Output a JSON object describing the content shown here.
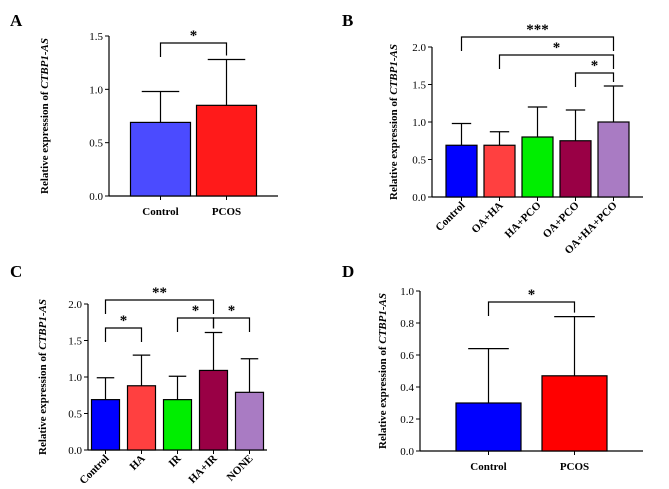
{
  "chart_data": [
    {
      "panel": "A",
      "type": "bar",
      "ylabel_prefix": "Relative expression of ",
      "ylabel_gene": "CTBP1-AS",
      "categories": [
        "Control",
        "PCOS"
      ],
      "values": [
        0.69,
        0.85
      ],
      "errors": [
        0.29,
        0.43
      ],
      "colors": [
        "#4B4BFF",
        "#FF1A1A"
      ],
      "ylim": [
        0,
        1.5
      ],
      "yticks": [
        "0.0",
        "0.5",
        "1.0",
        "1.5"
      ],
      "significance": [
        {
          "from": 0,
          "to": 1,
          "label": "*"
        }
      ]
    },
    {
      "panel": "B",
      "type": "bar",
      "ylabel_prefix": "Relative expression of ",
      "ylabel_gene": "CTBP1-AS",
      "categories": [
        "Control",
        "OA+HA",
        "HA+PCO",
        "OA+PCO",
        "OA+HA+PCO"
      ],
      "values": [
        0.69,
        0.69,
        0.8,
        0.75,
        1.0
      ],
      "errors": [
        0.29,
        0.18,
        0.4,
        0.41,
        0.48
      ],
      "colors": [
        "#0000FF",
        "#FF4040",
        "#00EE00",
        "#990045",
        "#A97BC3"
      ],
      "ylim": [
        0,
        2.0
      ],
      "yticks": [
        "0.0",
        "0.5",
        "1.0",
        "1.5",
        "2.0"
      ],
      "significance": [
        {
          "from": 0,
          "to": 4,
          "label": "***"
        },
        {
          "from": 1,
          "to": 4,
          "label": "*"
        },
        {
          "from": 3,
          "to": 4,
          "label": "*"
        }
      ]
    },
    {
      "panel": "C",
      "type": "bar",
      "ylabel_prefix": "Relative expression of ",
      "ylabel_gene": "CTBP1-AS",
      "categories": [
        "Control",
        "HA",
        "IR",
        "HA+IR",
        "NONE"
      ],
      "values": [
        0.69,
        0.88,
        0.69,
        1.09,
        0.79
      ],
      "errors": [
        0.3,
        0.42,
        0.32,
        0.52,
        0.46
      ],
      "colors": [
        "#0000FF",
        "#FF4040",
        "#00EE00",
        "#990045",
        "#A97BC3"
      ],
      "ylim": [
        0,
        2.0
      ],
      "yticks": [
        "0.0",
        "0.5",
        "1.0",
        "1.5",
        "2.0"
      ],
      "significance": [
        {
          "from": 0,
          "to": 3,
          "label": "**"
        },
        {
          "from": 0,
          "to": 1,
          "label": "*"
        },
        {
          "from": 2,
          "to": 3,
          "label": "*"
        },
        {
          "from": 3,
          "to": 4,
          "label": "*"
        }
      ]
    },
    {
      "panel": "D",
      "type": "bar",
      "ylabel_prefix": "Relative expression of ",
      "ylabel_gene": "CTBP1-AS",
      "categories": [
        "Control",
        "PCOS"
      ],
      "values": [
        0.3,
        0.47
      ],
      "errors": [
        0.34,
        0.37
      ],
      "colors": [
        "#0000FF",
        "#FF0000"
      ],
      "ylim": [
        0,
        1.0
      ],
      "yticks": [
        "0.0",
        "0.2",
        "0.4",
        "0.6",
        "0.8",
        "1.0"
      ],
      "significance": [
        {
          "from": 0,
          "to": 1,
          "label": "*"
        }
      ]
    }
  ]
}
